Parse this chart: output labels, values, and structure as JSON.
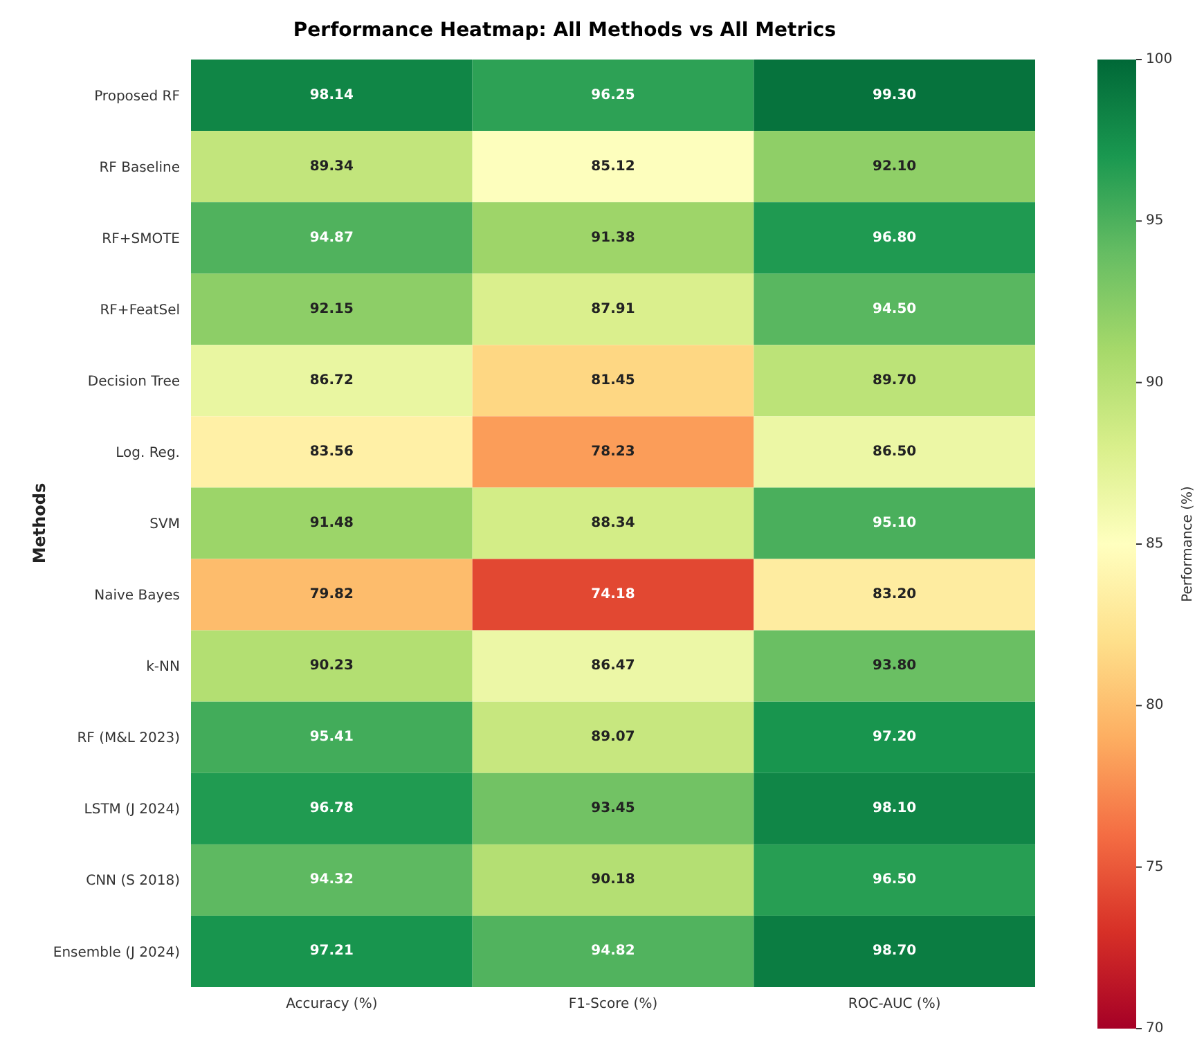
{
  "chart_data": {
    "type": "heatmap",
    "title": "Performance Heatmap: All Methods vs All Metrics",
    "ylabel": "Methods",
    "clabel": "Performance (%)",
    "categories": [
      "Accuracy (%)",
      "F1-Score (%)",
      "ROC-AUC (%)"
    ],
    "y_categories": [
      "Proposed RF",
      "RF Baseline",
      "RF+SMOTE",
      "RF+FeatSel",
      "Decision Tree",
      "Log. Reg.",
      "SVM",
      "Naive Bayes",
      "k-NN",
      "RF (M&L 2023)",
      "LSTM (J 2024)",
      "CNN (S 2018)",
      "Ensemble (J 2024)"
    ],
    "cells": [
      [
        98.14,
        96.25,
        99.3
      ],
      [
        89.34,
        85.12,
        92.1
      ],
      [
        94.87,
        91.38,
        96.8
      ],
      [
        92.15,
        87.91,
        94.5
      ],
      [
        86.72,
        81.45,
        89.7
      ],
      [
        83.56,
        78.23,
        86.5
      ],
      [
        91.48,
        88.34,
        95.1
      ],
      [
        79.82,
        74.18,
        83.2
      ],
      [
        90.23,
        86.47,
        93.8
      ],
      [
        95.41,
        89.07,
        97.2
      ],
      [
        96.78,
        93.45,
        98.1
      ],
      [
        94.32,
        90.18,
        96.5
      ],
      [
        97.21,
        94.82,
        98.7
      ]
    ],
    "cell_labels": [
      [
        "98.14",
        "96.25",
        "99.30"
      ],
      [
        "89.34",
        "85.12",
        "92.10"
      ],
      [
        "94.87",
        "91.38",
        "96.80"
      ],
      [
        "92.15",
        "87.91",
        "94.50"
      ],
      [
        "86.72",
        "81.45",
        "89.70"
      ],
      [
        "83.56",
        "78.23",
        "86.50"
      ],
      [
        "91.48",
        "88.34",
        "95.10"
      ],
      [
        "79.82",
        "74.18",
        "83.20"
      ],
      [
        "90.23",
        "86.47",
        "93.80"
      ],
      [
        "95.41",
        "89.07",
        "97.20"
      ],
      [
        "96.78",
        "93.45",
        "98.10"
      ],
      [
        "94.32",
        "90.18",
        "96.50"
      ],
      [
        "97.21",
        "94.82",
        "98.70"
      ]
    ],
    "clim": [
      70,
      100
    ],
    "cticks": [
      70,
      75,
      80,
      85,
      90,
      95,
      100
    ],
    "data_labels": true
  }
}
